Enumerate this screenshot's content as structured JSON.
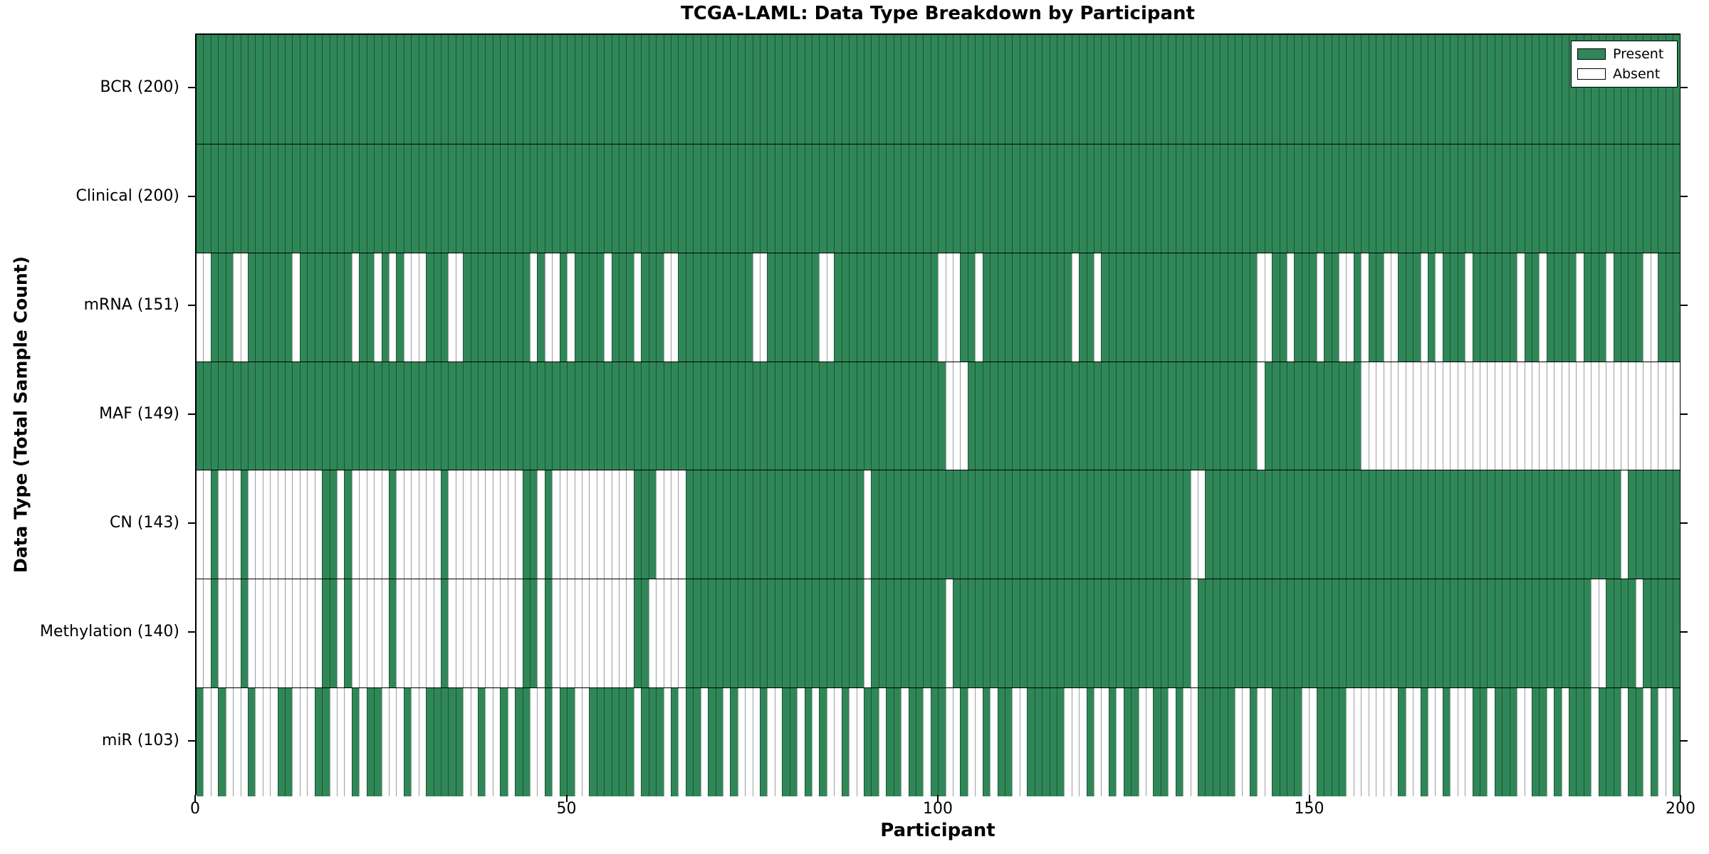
{
  "title": "TCGA-LAML: Data Type Breakdown by Participant",
  "axes": {
    "xlabel": "Participant",
    "ylabel": "Data Type (Total Sample Count)",
    "x_tick_labels": [
      "0",
      "50",
      "100",
      "150",
      "200"
    ]
  },
  "legend": {
    "items": [
      {
        "label": "Present",
        "color": "#2f8757"
      },
      {
        "label": "Absent",
        "color": "#ffffff"
      }
    ]
  },
  "colors": {
    "present": "#2f8757",
    "absent": "#ffffff",
    "grid_line": "rgba(0,0,0,0.38)",
    "frame": "#000000"
  },
  "chart_data": {
    "type": "heatmap",
    "title": "TCGA-LAML: Data Type Breakdown by Participant",
    "xlabel": "Participant",
    "ylabel": "Data Type (Total Sample Count)",
    "x_range": [
      0,
      200
    ],
    "x_ticks": [
      0,
      50,
      100,
      150,
      200
    ],
    "legend_position": "upper right",
    "legend_entries": [
      "Present",
      "Absent"
    ],
    "cell_values": "1 = Present (green), 0 = Absent (white); 200 chars per row = participants 0-199 left to right",
    "rows": [
      {
        "label": "BCR (200)",
        "present_count": 200,
        "pattern": "11111111111111111111111111111111111111111111111111111111111111111111111111111111111111111111111111111111111111111111111111111111111111111111111111111111111111111111111111111111111111111111111111111111"
      },
      {
        "label": "Clinical (200)",
        "present_count": 200,
        "pattern": "11111111111111111111111111111111111111111111111111111111111111111111111111111111111111111111111111111111111111111111111111111111111111111111111111111111111111111111111111111111111111111111111111111111"
      },
      {
        "label": "mRNA (151)",
        "present_count": 151,
        "pattern": "00111001111110111111101101010001110011111111101001011110111011100111111111100111111100111111111111110001101111111111110110111111111111111111111001101110110010110011101011101111110110111101110111100111 11"
      },
      {
        "label": "MAF (149)",
        "present_count": 149,
        "pattern": "11111111111111111111111111111111111111111111111111111111111111111111111111111111111111111111111111111000111111111111111111111111111111111111111011111111111110000000000000000000000000000000000000000000"
      },
      {
        "label": "CN (143)",
        "present_count": 143,
        "pattern": "00100010000000000110100000100000010000000000110100000000000111000011111111111111111111111101111111111111111111111111111111111111111111001111111111111111111111111111111111111111111111111111111101111111 11"
      },
      {
        "label": "Methylation (140)",
        "present_count": 140,
        "pattern": "00100010000000000110100000100000010000000000110100000000000110000011111111111111111111111101111111111011111111111111111111111111111111011111111111111111111111111111111111111111111111111111001111011111 1111"
      },
      {
        "label": "miR (103)",
        "present_count": 103,
        "pattern": "10010001000110001100010110001001111100100101100101100111111011101011011010001001101010010011011011011001001011001111100010010110011010011111001001111001111000000010010010001101110011010111011101101001"
      }
    ]
  }
}
